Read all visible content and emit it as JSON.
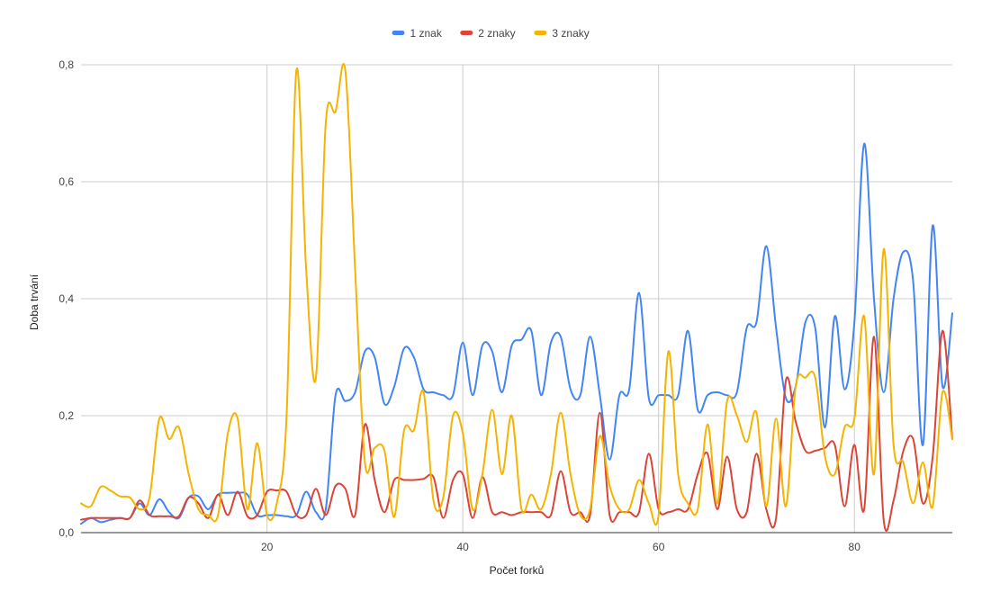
{
  "chart_data": {
    "type": "line",
    "title": "",
    "xlabel": "Počet forků",
    "ylabel": "Doba trvání",
    "xlim": [
      1,
      90
    ],
    "ylim": [
      0,
      0.8
    ],
    "x_ticks": [
      20,
      40,
      60,
      80
    ],
    "x_tick_labels": [
      "20",
      "40",
      "60",
      "80"
    ],
    "y_ticks": [
      0,
      0.2,
      0.4,
      0.6,
      0.8
    ],
    "y_tick_labels": [
      "0,0",
      "0,2",
      "0,4",
      "0,6",
      "0,8"
    ],
    "grid": true,
    "legend_position": "top",
    "x": [
      1,
      2,
      3,
      4,
      5,
      6,
      7,
      8,
      9,
      10,
      11,
      12,
      13,
      14,
      15,
      16,
      17,
      18,
      19,
      20,
      21,
      22,
      23,
      24,
      25,
      26,
      27,
      28,
      29,
      30,
      31,
      32,
      33,
      34,
      35,
      36,
      37,
      38,
      39,
      40,
      41,
      42,
      43,
      44,
      45,
      46,
      47,
      48,
      49,
      50,
      51,
      52,
      53,
      54,
      55,
      56,
      57,
      58,
      59,
      60,
      61,
      62,
      63,
      64,
      65,
      66,
      67,
      68,
      69,
      70,
      71,
      72,
      73,
      74,
      75,
      76,
      77,
      78,
      79,
      80,
      81,
      82,
      83,
      84,
      85,
      86,
      87,
      88,
      89,
      90
    ],
    "series": [
      {
        "name": "1 znak",
        "color": "#4285f4",
        "values": [
          0.015,
          0.025,
          0.018,
          0.022,
          0.025,
          0.025,
          0.05,
          0.03,
          0.057,
          0.035,
          0.025,
          0.06,
          0.062,
          0.04,
          0.065,
          0.068,
          0.068,
          0.065,
          0.03,
          0.03,
          0.03,
          0.028,
          0.03,
          0.07,
          0.035,
          0.04,
          0.235,
          0.225,
          0.24,
          0.31,
          0.3,
          0.22,
          0.25,
          0.315,
          0.3,
          0.245,
          0.24,
          0.235,
          0.235,
          0.325,
          0.235,
          0.32,
          0.31,
          0.24,
          0.32,
          0.33,
          0.345,
          0.235,
          0.325,
          0.335,
          0.245,
          0.235,
          0.335,
          0.235,
          0.125,
          0.235,
          0.245,
          0.41,
          0.23,
          0.235,
          0.235,
          0.235,
          0.345,
          0.21,
          0.235,
          0.24,
          0.235,
          0.24,
          0.35,
          0.36,
          0.49,
          0.35,
          0.23,
          0.25,
          0.36,
          0.35,
          0.18,
          0.37,
          0.245,
          0.36,
          0.665,
          0.4,
          0.24,
          0.4,
          0.48,
          0.43,
          0.15,
          0.525,
          0.25,
          0.375
        ]
      },
      {
        "name": "2 znaky",
        "color": "#db4437",
        "values": [
          0.022,
          0.025,
          0.025,
          0.025,
          0.025,
          0.025,
          0.055,
          0.03,
          0.028,
          0.028,
          0.028,
          0.06,
          0.05,
          0.025,
          0.065,
          0.03,
          0.07,
          0.028,
          0.03,
          0.07,
          0.072,
          0.07,
          0.03,
          0.03,
          0.075,
          0.03,
          0.08,
          0.075,
          0.03,
          0.185,
          0.09,
          0.035,
          0.09,
          0.09,
          0.09,
          0.092,
          0.095,
          0.025,
          0.09,
          0.1,
          0.025,
          0.095,
          0.035,
          0.035,
          0.03,
          0.035,
          0.035,
          0.035,
          0.03,
          0.105,
          0.035,
          0.035,
          0.03,
          0.205,
          0.03,
          0.035,
          0.035,
          0.035,
          0.135,
          0.04,
          0.035,
          0.04,
          0.04,
          0.1,
          0.135,
          0.04,
          0.13,
          0.04,
          0.035,
          0.135,
          0.04,
          0.025,
          0.26,
          0.19,
          0.14,
          0.14,
          0.145,
          0.15,
          0.045,
          0.15,
          0.04,
          0.335,
          0.02,
          0.055,
          0.14,
          0.16,
          0.05,
          0.13,
          0.345,
          0.16
        ]
      },
      {
        "name": "3 znaky",
        "color": "#f4b400",
        "values": [
          0.05,
          0.045,
          0.078,
          0.072,
          0.062,
          0.06,
          0.04,
          0.06,
          0.195,
          0.16,
          0.18,
          0.1,
          0.04,
          0.03,
          0.03,
          0.17,
          0.195,
          0.04,
          0.153,
          0.03,
          0.05,
          0.2,
          0.79,
          0.45,
          0.265,
          0.7,
          0.72,
          0.79,
          0.45,
          0.12,
          0.145,
          0.14,
          0.027,
          0.175,
          0.175,
          0.24,
          0.055,
          0.06,
          0.2,
          0.17,
          0.04,
          0.1,
          0.21,
          0.1,
          0.2,
          0.04,
          0.065,
          0.04,
          0.1,
          0.205,
          0.1,
          0.03,
          0.04,
          0.165,
          0.08,
          0.04,
          0.04,
          0.09,
          0.05,
          0.03,
          0.31,
          0.1,
          0.05,
          0.04,
          0.185,
          0.05,
          0.225,
          0.2,
          0.155,
          0.205,
          0.045,
          0.195,
          0.045,
          0.25,
          0.265,
          0.265,
          0.13,
          0.1,
          0.18,
          0.195,
          0.37,
          0.1,
          0.485,
          0.15,
          0.12,
          0.05,
          0.12,
          0.045,
          0.24,
          0.16
        ]
      }
    ]
  }
}
